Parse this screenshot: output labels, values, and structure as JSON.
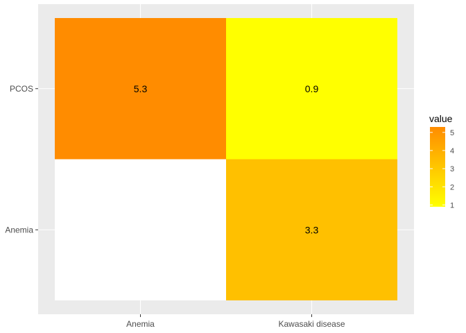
{
  "chart_data": {
    "type": "heatmap",
    "title": "",
    "xlabel": "",
    "ylabel": "",
    "x_categories": [
      "Anemia",
      "Kawasaki disease"
    ],
    "y_categories": [
      "Anemia",
      "PCOS"
    ],
    "cells": [
      {
        "x": "Anemia",
        "y": "PCOS",
        "value": 5.3,
        "label": "5.3",
        "color": "#FF8C00"
      },
      {
        "x": "Kawasaki disease",
        "y": "PCOS",
        "value": 0.9,
        "label": "0.9",
        "color": "#FFFF00"
      },
      {
        "x": "Anemia",
        "y": "Anemia",
        "value": null,
        "label": "",
        "color": "#FFFFFF"
      },
      {
        "x": "Kawasaki disease",
        "y": "Anemia",
        "value": 3.3,
        "label": "3.3",
        "color": "#FFC000"
      }
    ],
    "grid": true,
    "legend": {
      "title": "value",
      "position": "right",
      "range": [
        0.9,
        5.3
      ],
      "ticks": [
        1,
        2,
        3,
        4,
        5
      ],
      "color_low": "#FFFF00",
      "color_high": "#FF8C00"
    },
    "panel_background": "#EBEBEB",
    "grid_color": "#FFFFFF"
  }
}
